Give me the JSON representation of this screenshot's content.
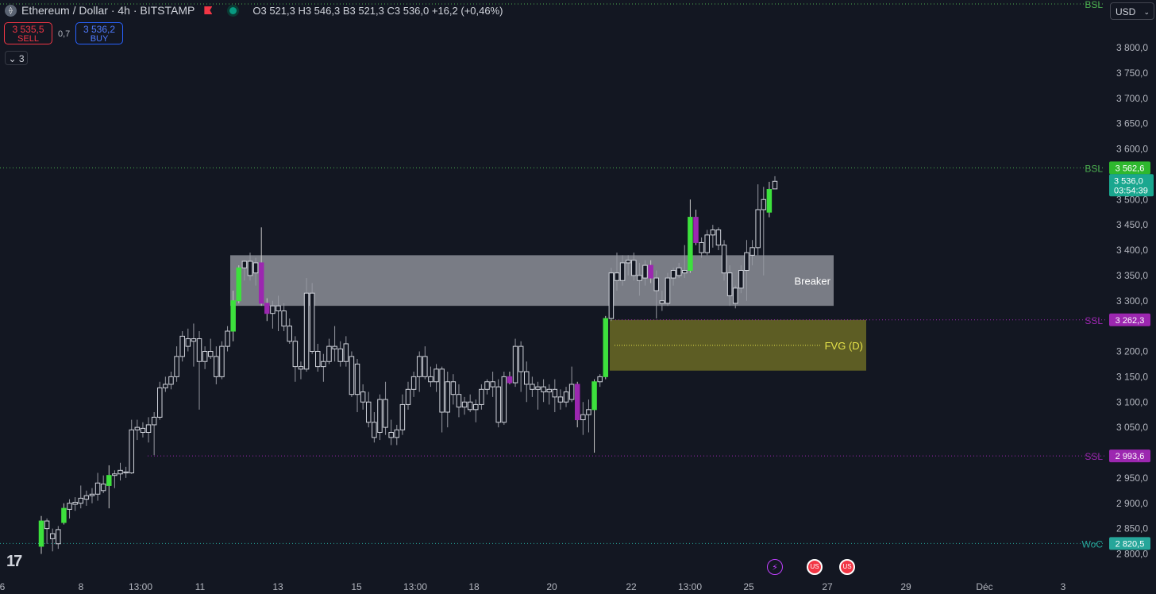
{
  "header": {
    "symbol": "Ethereum / Dollar · 4h · BITSTAMP",
    "coin_icon": "ethereum-coin-icon",
    "ohlc": "O3 521,3  H3 546,3  B3 521,3  C3 536,0  +16,2 (+0,46%)"
  },
  "trade": {
    "sell_price": "3 535,5",
    "sell_label": "SELL",
    "spread": "0,7",
    "buy_price": "3 536,2",
    "buy_label": "BUY"
  },
  "indicators": {
    "count": "3",
    "icon": "chevron-down-icon"
  },
  "currency": {
    "label": "USD",
    "icon": "chevron-down-icon"
  },
  "colors": {
    "background": "#131722",
    "bull": "#4caf50",
    "bull_bright": "#3de13d",
    "bear": "#e040fb",
    "bear_dim": "#9c27b0",
    "hollow": "#d1d4dc",
    "bsl": "#4caf50",
    "ssl": "#9c27b0",
    "woc": "#26a69a",
    "fvg": "#6b6a25",
    "breaker": "#8c8e96"
  },
  "events": {
    "lightning": "lightning-icon",
    "us_flag": "us-flag-icon"
  },
  "chart_data": {
    "type": "candlestick",
    "symbol": "Ethereum / Dollar",
    "timeframe": "4h",
    "ylim": [
      2775,
      3860
    ],
    "y_ticks": [
      "3 800,0",
      "3 750,0",
      "3 700,0",
      "3 650,0",
      "3 600,0",
      "3 500,0",
      "3 450,0",
      "3 400,0",
      "3 350,0",
      "3 300,0",
      "3 200,0",
      "3 150,0",
      "3 100,0",
      "3 050,0",
      "2 950,0",
      "2 900,0",
      "2 850,0",
      "2 800,0"
    ],
    "x_ticks": [
      "6",
      "8",
      "13:00",
      "11",
      "13",
      "15",
      "13:00",
      "18",
      "20",
      "22",
      "13:00",
      "25",
      "27",
      "29",
      "Déc",
      "3"
    ],
    "levels": [
      {
        "label": "BSL",
        "value": 3562.6,
        "price_label": "3 562,6",
        "color": "#4caf50"
      },
      {
        "label": "SSL",
        "value": 3262.3,
        "price_label": "3 262,3",
        "color": "#9c27b0"
      },
      {
        "label": "SSL",
        "value": 2993.6,
        "price_label": "2 993,6",
        "color": "#9c27b0"
      },
      {
        "label": "WoC",
        "value": 2820.5,
        "price_label": "2 820,5",
        "color": "#26a69a"
      },
      {
        "label": "BSL",
        "value": 3868,
        "price_label": "",
        "color": "#4caf50"
      }
    ],
    "current_price": {
      "value": 3536.0,
      "label": "3 536,0",
      "countdown": "03:54:39"
    },
    "zones": [
      {
        "label": "Breaker",
        "top": 3390,
        "bottom": 3290,
        "color": "#8c8e96"
      },
      {
        "label": "FVG (D)",
        "top": 3262.3,
        "bottom": 3162,
        "mid": 3212,
        "color": "#6b6a25"
      }
    ],
    "candles": [
      {
        "o": 2815,
        "h": 2875,
        "l": 2800,
        "c": 2865,
        "k": "g"
      },
      {
        "o": 2865,
        "h": 2870,
        "l": 2820,
        "c": 2850,
        "k": "h"
      },
      {
        "o": 2840,
        "h": 2850,
        "l": 2805,
        "c": 2830,
        "k": "h"
      },
      {
        "o": 2820,
        "h": 2855,
        "l": 2810,
        "c": 2848,
        "k": "h"
      },
      {
        "o": 2862,
        "h": 2900,
        "l": 2858,
        "c": 2890,
        "k": "g"
      },
      {
        "o": 2888,
        "h": 2908,
        "l": 2870,
        "c": 2900,
        "k": "h"
      },
      {
        "o": 2898,
        "h": 2912,
        "l": 2885,
        "c": 2902,
        "k": "h"
      },
      {
        "o": 2900,
        "h": 2935,
        "l": 2890,
        "c": 2910,
        "k": "h"
      },
      {
        "o": 2908,
        "h": 2925,
        "l": 2895,
        "c": 2915,
        "k": "h"
      },
      {
        "o": 2915,
        "h": 2930,
        "l": 2900,
        "c": 2918,
        "k": "h"
      },
      {
        "o": 2918,
        "h": 2960,
        "l": 2905,
        "c": 2940,
        "k": "h"
      },
      {
        "o": 2938,
        "h": 2955,
        "l": 2920,
        "c": 2925,
        "k": "h"
      },
      {
        "o": 2935,
        "h": 2975,
        "l": 2890,
        "c": 2955,
        "k": "g"
      },
      {
        "o": 2955,
        "h": 2965,
        "l": 2930,
        "c": 2958,
        "k": "h"
      },
      {
        "o": 2958,
        "h": 2980,
        "l": 2945,
        "c": 2965,
        "k": "h"
      },
      {
        "o": 2962,
        "h": 2972,
        "l": 2950,
        "c": 2960,
        "k": "h"
      },
      {
        "o": 2960,
        "h": 3065,
        "l": 2958,
        "c": 3045,
        "k": "h"
      },
      {
        "o": 3045,
        "h": 3065,
        "l": 3025,
        "c": 3050,
        "k": "h"
      },
      {
        "o": 3048,
        "h": 3060,
        "l": 3030,
        "c": 3040,
        "k": "h"
      },
      {
        "o": 3040,
        "h": 3070,
        "l": 3020,
        "c": 3055,
        "k": "h"
      },
      {
        "o": 3055,
        "h": 3080,
        "l": 2995,
        "c": 3070,
        "k": "h"
      },
      {
        "o": 3070,
        "h": 3140,
        "l": 3065,
        "c": 3128,
        "k": "h"
      },
      {
        "o": 3128,
        "h": 3150,
        "l": 3120,
        "c": 3135,
        "k": "h"
      },
      {
        "o": 3135,
        "h": 3160,
        "l": 3125,
        "c": 3150,
        "k": "h"
      },
      {
        "o": 3150,
        "h": 3210,
        "l": 3140,
        "c": 3190,
        "k": "h"
      },
      {
        "o": 3190,
        "h": 3240,
        "l": 3180,
        "c": 3230,
        "k": "h"
      },
      {
        "o": 3225,
        "h": 3245,
        "l": 3200,
        "c": 3210,
        "k": "h"
      },
      {
        "o": 3220,
        "h": 3255,
        "l": 3170,
        "c": 3225,
        "k": "h"
      },
      {
        "o": 3225,
        "h": 3240,
        "l": 3085,
        "c": 3180,
        "k": "h"
      },
      {
        "o": 3180,
        "h": 3210,
        "l": 3165,
        "c": 3200,
        "k": "h"
      },
      {
        "o": 3200,
        "h": 3225,
        "l": 3185,
        "c": 3190,
        "k": "h"
      },
      {
        "o": 3190,
        "h": 3210,
        "l": 3135,
        "c": 3150,
        "k": "h"
      },
      {
        "o": 3150,
        "h": 3220,
        "l": 3145,
        "c": 3210,
        "k": "h"
      },
      {
        "o": 3210,
        "h": 3250,
        "l": 3200,
        "c": 3240,
        "k": "h"
      },
      {
        "o": 3240,
        "h": 3320,
        "l": 3220,
        "c": 3300,
        "k": "g"
      },
      {
        "o": 3300,
        "h": 3370,
        "l": 3295,
        "c": 3365,
        "k": "g"
      },
      {
        "o": 3365,
        "h": 3380,
        "l": 3340,
        "c": 3378,
        "k": "h"
      },
      {
        "o": 3378,
        "h": 3395,
        "l": 3340,
        "c": 3350,
        "k": "h"
      },
      {
        "o": 3355,
        "h": 3385,
        "l": 3330,
        "c": 3375,
        "k": "h"
      },
      {
        "o": 3375,
        "h": 3445,
        "l": 3290,
        "c": 3295,
        "k": "p"
      },
      {
        "o": 3295,
        "h": 3305,
        "l": 3260,
        "c": 3275,
        "k": "p"
      },
      {
        "o": 3275,
        "h": 3300,
        "l": 3245,
        "c": 3290,
        "k": "h"
      },
      {
        "o": 3290,
        "h": 3310,
        "l": 3240,
        "c": 3280,
        "k": "h"
      },
      {
        "o": 3280,
        "h": 3295,
        "l": 3240,
        "c": 3250,
        "k": "h"
      },
      {
        "o": 3250,
        "h": 3265,
        "l": 3215,
        "c": 3220,
        "k": "h"
      },
      {
        "o": 3220,
        "h": 3230,
        "l": 3140,
        "c": 3170,
        "k": "h"
      },
      {
        "o": 3170,
        "h": 3180,
        "l": 3145,
        "c": 3165,
        "k": "h"
      },
      {
        "o": 3165,
        "h": 3345,
        "l": 3160,
        "c": 3315,
        "k": "h"
      },
      {
        "o": 3315,
        "h": 3335,
        "l": 3195,
        "c": 3200,
        "k": "h"
      },
      {
        "o": 3200,
        "h": 3215,
        "l": 3160,
        "c": 3170,
        "k": "h"
      },
      {
        "o": 3170,
        "h": 3195,
        "l": 3140,
        "c": 3180,
        "k": "h"
      },
      {
        "o": 3180,
        "h": 3225,
        "l": 3175,
        "c": 3210,
        "k": "h"
      },
      {
        "o": 3210,
        "h": 3250,
        "l": 3180,
        "c": 3205,
        "k": "h"
      },
      {
        "o": 3205,
        "h": 3220,
        "l": 3170,
        "c": 3180,
        "k": "h"
      },
      {
        "o": 3180,
        "h": 3230,
        "l": 3170,
        "c": 3215,
        "k": "h"
      },
      {
        "o": 3190,
        "h": 3200,
        "l": 3110,
        "c": 3115,
        "k": "h"
      },
      {
        "o": 3115,
        "h": 3185,
        "l": 3080,
        "c": 3175,
        "k": "h"
      },
      {
        "o": 3100,
        "h": 3135,
        "l": 3085,
        "c": 3120,
        "k": "h"
      },
      {
        "o": 3100,
        "h": 3120,
        "l": 3050,
        "c": 3060,
        "k": "h"
      },
      {
        "o": 3060,
        "h": 3080,
        "l": 3020,
        "c": 3030,
        "k": "h"
      },
      {
        "o": 3040,
        "h": 3115,
        "l": 3025,
        "c": 3105,
        "k": "h"
      },
      {
        "o": 3105,
        "h": 3140,
        "l": 3035,
        "c": 3050,
        "k": "h"
      },
      {
        "o": 3040,
        "h": 3065,
        "l": 3015,
        "c": 3030,
        "k": "h"
      },
      {
        "o": 3030,
        "h": 3055,
        "l": 3015,
        "c": 3045,
        "k": "h"
      },
      {
        "o": 3045,
        "h": 3115,
        "l": 3035,
        "c": 3095,
        "k": "h"
      },
      {
        "o": 3095,
        "h": 3140,
        "l": 3085,
        "c": 3125,
        "k": "h"
      },
      {
        "o": 3125,
        "h": 3160,
        "l": 3110,
        "c": 3150,
        "k": "h"
      },
      {
        "o": 3150,
        "h": 3200,
        "l": 3120,
        "c": 3190,
        "k": "h"
      },
      {
        "o": 3190,
        "h": 3210,
        "l": 3145,
        "c": 3150,
        "k": "h"
      },
      {
        "o": 3150,
        "h": 3170,
        "l": 3130,
        "c": 3140,
        "k": "h"
      },
      {
        "o": 3140,
        "h": 3175,
        "l": 3120,
        "c": 3165,
        "k": "h"
      },
      {
        "o": 3165,
        "h": 3170,
        "l": 3040,
        "c": 3080,
        "k": "h"
      },
      {
        "o": 3080,
        "h": 3160,
        "l": 3050,
        "c": 3140,
        "k": "h"
      },
      {
        "o": 3140,
        "h": 3155,
        "l": 3095,
        "c": 3115,
        "k": "h"
      },
      {
        "o": 3115,
        "h": 3135,
        "l": 3070,
        "c": 3090,
        "k": "h"
      },
      {
        "o": 3090,
        "h": 3110,
        "l": 3075,
        "c": 3100,
        "k": "h"
      },
      {
        "o": 3100,
        "h": 3115,
        "l": 3080,
        "c": 3085,
        "k": "h"
      },
      {
        "o": 3085,
        "h": 3105,
        "l": 3060,
        "c": 3095,
        "k": "h"
      },
      {
        "o": 3095,
        "h": 3135,
        "l": 3085,
        "c": 3125,
        "k": "h"
      },
      {
        "o": 3125,
        "h": 3145,
        "l": 3115,
        "c": 3140,
        "k": "h"
      },
      {
        "o": 3140,
        "h": 3160,
        "l": 3110,
        "c": 3130,
        "k": "h"
      },
      {
        "o": 3130,
        "h": 3145,
        "l": 3050,
        "c": 3060,
        "k": "h"
      },
      {
        "o": 3060,
        "h": 3160,
        "l": 3055,
        "c": 3150,
        "k": "h"
      },
      {
        "o": 3150,
        "h": 3160,
        "l": 3135,
        "c": 3138,
        "k": "p"
      },
      {
        "o": 3138,
        "h": 3225,
        "l": 3130,
        "c": 3210,
        "k": "h"
      },
      {
        "o": 3210,
        "h": 3220,
        "l": 3120,
        "c": 3160,
        "k": "h"
      },
      {
        "o": 3160,
        "h": 3180,
        "l": 3100,
        "c": 3135,
        "k": "h"
      },
      {
        "o": 3135,
        "h": 3150,
        "l": 3110,
        "c": 3125,
        "k": "h"
      },
      {
        "o": 3125,
        "h": 3140,
        "l": 3085,
        "c": 3130,
        "k": "h"
      },
      {
        "o": 3130,
        "h": 3145,
        "l": 3100,
        "c": 3120,
        "k": "h"
      },
      {
        "o": 3120,
        "h": 3135,
        "l": 3095,
        "c": 3125,
        "k": "h"
      },
      {
        "o": 3125,
        "h": 3145,
        "l": 3080,
        "c": 3110,
        "k": "h"
      },
      {
        "o": 3110,
        "h": 3125,
        "l": 3085,
        "c": 3100,
        "k": "h"
      },
      {
        "o": 3100,
        "h": 3130,
        "l": 3090,
        "c": 3120,
        "k": "h"
      },
      {
        "o": 3105,
        "h": 3170,
        "l": 3100,
        "c": 3135,
        "k": "h"
      },
      {
        "o": 3135,
        "h": 3140,
        "l": 3050,
        "c": 3065,
        "k": "p"
      },
      {
        "o": 3065,
        "h": 3100,
        "l": 3035,
        "c": 3075,
        "k": "h"
      },
      {
        "o": 3075,
        "h": 3105,
        "l": 3040,
        "c": 3085,
        "k": "h"
      },
      {
        "o": 3085,
        "h": 3145,
        "l": 3000,
        "c": 3140,
        "k": "g"
      },
      {
        "o": 3140,
        "h": 3155,
        "l": 3130,
        "c": 3150,
        "k": "h"
      },
      {
        "o": 3150,
        "h": 3270,
        "l": 3145,
        "c": 3265,
        "k": "g"
      },
      {
        "o": 3265,
        "h": 3365,
        "l": 3260,
        "c": 3355,
        "k": "h"
      },
      {
        "o": 3355,
        "h": 3395,
        "l": 3320,
        "c": 3340,
        "k": "h"
      },
      {
        "o": 3340,
        "h": 3390,
        "l": 3330,
        "c": 3375,
        "k": "h"
      },
      {
        "o": 3375,
        "h": 3390,
        "l": 3350,
        "c": 3380,
        "k": "h"
      },
      {
        "o": 3380,
        "h": 3395,
        "l": 3340,
        "c": 3350,
        "k": "h"
      },
      {
        "o": 3350,
        "h": 3375,
        "l": 3310,
        "c": 3340,
        "k": "h"
      },
      {
        "o": 3345,
        "h": 3380,
        "l": 3330,
        "c": 3370,
        "k": "h"
      },
      {
        "o": 3370,
        "h": 3380,
        "l": 3335,
        "c": 3345,
        "k": "p"
      },
      {
        "o": 3345,
        "h": 3360,
        "l": 3265,
        "c": 3320,
        "k": "h"
      },
      {
        "o": 3300,
        "h": 3320,
        "l": 3280,
        "c": 3295,
        "k": "h"
      },
      {
        "o": 3295,
        "h": 3355,
        "l": 3290,
        "c": 3345,
        "k": "h"
      },
      {
        "o": 3345,
        "h": 3365,
        "l": 3330,
        "c": 3360,
        "k": "h"
      },
      {
        "o": 3350,
        "h": 3375,
        "l": 3345,
        "c": 3365,
        "k": "h"
      },
      {
        "o": 3360,
        "h": 3410,
        "l": 3345,
        "c": 3355,
        "k": "h"
      },
      {
        "o": 3360,
        "h": 3500,
        "l": 3355,
        "c": 3465,
        "k": "g"
      },
      {
        "o": 3465,
        "h": 3480,
        "l": 3410,
        "c": 3415,
        "k": "p"
      },
      {
        "o": 3415,
        "h": 3425,
        "l": 3385,
        "c": 3395,
        "k": "h"
      },
      {
        "o": 3395,
        "h": 3440,
        "l": 3390,
        "c": 3430,
        "k": "h"
      },
      {
        "o": 3430,
        "h": 3450,
        "l": 3405,
        "c": 3440,
        "k": "h"
      },
      {
        "o": 3440,
        "h": 3445,
        "l": 3400,
        "c": 3410,
        "k": "h"
      },
      {
        "o": 3410,
        "h": 3420,
        "l": 3340,
        "c": 3355,
        "k": "h"
      },
      {
        "o": 3355,
        "h": 3370,
        "l": 3290,
        "c": 3310,
        "k": "h"
      },
      {
        "o": 3295,
        "h": 3330,
        "l": 3285,
        "c": 3325,
        "k": "h"
      },
      {
        "o": 3325,
        "h": 3370,
        "l": 3315,
        "c": 3360,
        "k": "h"
      },
      {
        "o": 3360,
        "h": 3420,
        "l": 3300,
        "c": 3395,
        "k": "h"
      },
      {
        "o": 3390,
        "h": 3420,
        "l": 3370,
        "c": 3405,
        "k": "h"
      },
      {
        "o": 3405,
        "h": 3530,
        "l": 3390,
        "c": 3480,
        "k": "h"
      },
      {
        "o": 3480,
        "h": 3525,
        "l": 3350,
        "c": 3500,
        "k": "h"
      },
      {
        "o": 3475,
        "h": 3535,
        "l": 3465,
        "c": 3520,
        "k": "g"
      },
      {
        "o": 3521,
        "h": 3546,
        "l": 3521,
        "c": 3536,
        "k": "h"
      }
    ]
  }
}
